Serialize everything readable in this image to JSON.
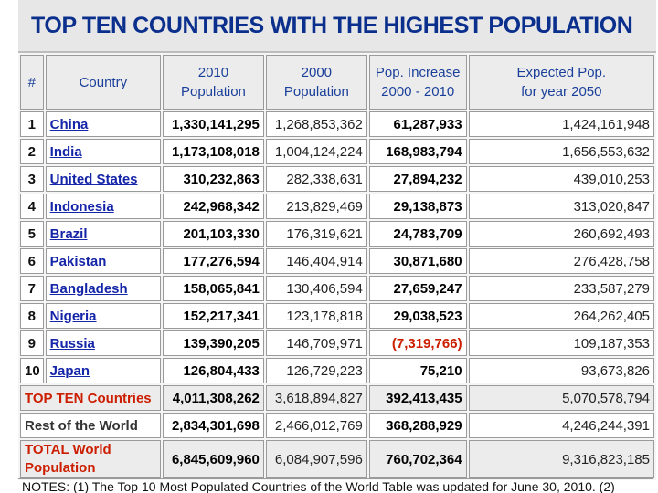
{
  "title": "TOP TEN COUNTRIES WITH THE HIGHEST POPULATION",
  "headers": {
    "rank": "#",
    "country": "Country",
    "pop2010": [
      "2010",
      "Population"
    ],
    "pop2000": [
      "2000",
      "Population"
    ],
    "increase": [
      "Pop. Increase",
      "2000 - 2010"
    ],
    "expected": [
      "Expected Pop.",
      "for year 2050"
    ]
  },
  "rows": [
    {
      "rank": "1",
      "country": "China",
      "pop2010": "1,330,141,295",
      "pop2000": "1,268,853,362",
      "increase": "61,287,933",
      "expected": "1,424,161,948"
    },
    {
      "rank": "2",
      "country": "India",
      "pop2010": "1,173,108,018",
      "pop2000": "1,004,124,224",
      "increase": "168,983,794",
      "expected": "1,656,553,632"
    },
    {
      "rank": "3",
      "country": "United States",
      "pop2010": "310,232,863",
      "pop2000": "282,338,631",
      "increase": "27,894,232",
      "expected": "439,010,253"
    },
    {
      "rank": "4",
      "country": "Indonesia",
      "pop2010": "242,968,342",
      "pop2000": "213,829,469",
      "increase": "29,138,873",
      "expected": "313,020,847"
    },
    {
      "rank": "5",
      "country": "Brazil",
      "pop2010": "201,103,330",
      "pop2000": "176,319,621",
      "increase": "24,783,709",
      "expected": "260,692,493"
    },
    {
      "rank": "6",
      "country": "Pakistan",
      "pop2010": "177,276,594",
      "pop2000": "146,404,914",
      "increase": "30,871,680",
      "expected": "276,428,758"
    },
    {
      "rank": "7",
      "country": "Bangladesh",
      "pop2010": "158,065,841",
      "pop2000": "130,406,594",
      "increase": "27,659,247",
      "expected": "233,587,279"
    },
    {
      "rank": "8",
      "country": "Nigeria",
      "pop2010": "152,217,341",
      "pop2000": "123,178,818",
      "increase": "29,038,523",
      "expected": "264,262,405"
    },
    {
      "rank": "9",
      "country": "Russia",
      "pop2010": "139,390,205",
      "pop2000": "146,709,971",
      "increase": "(7,319,766)",
      "expected": "109,187,353",
      "negative": true
    },
    {
      "rank": "10",
      "country": "Japan",
      "pop2010": "126,804,433",
      "pop2000": "126,729,223",
      "increase": "75,210",
      "expected": "93,673,826"
    }
  ],
  "summary": {
    "topten": {
      "label": "TOP TEN Countries",
      "pop2010": "4,011,308,262",
      "pop2000": "3,618,894,827",
      "increase": "392,413,435",
      "expected": "5,070,578,794"
    },
    "rest": {
      "label": "Rest of the World",
      "pop2010": "2,834,301,698",
      "pop2000": "2,466,012,769",
      "increase": "368,288,929",
      "expected": "4,246,244,391"
    },
    "world": {
      "label_line1": "TOTAL World",
      "label_line2": "Population",
      "pop2010": "6,845,609,960",
      "pop2000": "6,084,907,596",
      "increase": "760,702,364",
      "expected": "9,316,823,185"
    }
  },
  "notes": "NOTES: (1) The Top 10 Most Populated Countries of the World Table was updated for June 30, 2010. (2)",
  "colors": {
    "title": "#0a2f8c",
    "header": "#1a3f9a",
    "red": "#cc1e00",
    "link": "#1525a8"
  }
}
